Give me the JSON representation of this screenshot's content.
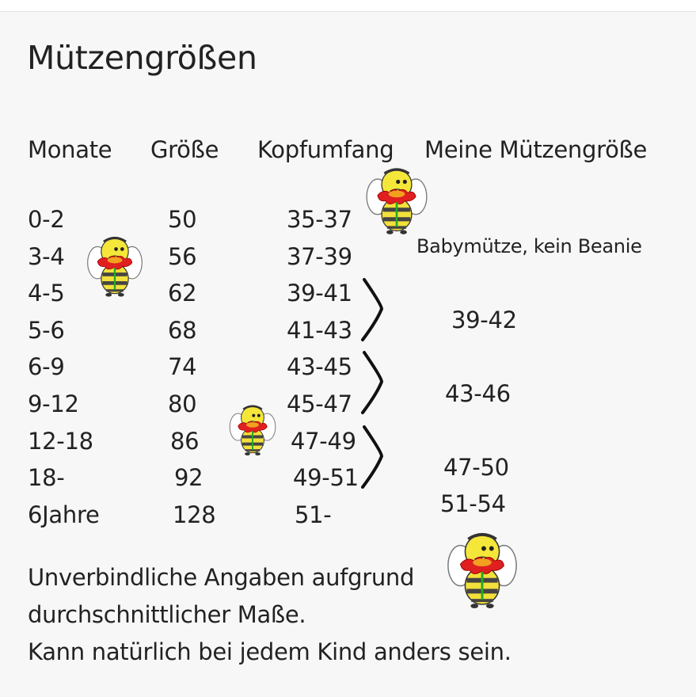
{
  "title": "Mützengrößen",
  "headers": [
    "Monate",
    "Größe",
    "Kopfumfang",
    "Meine Mützengröße"
  ],
  "rows": [
    {
      "monate": "0-2",
      "groesse": "50",
      "kopf": "35-37"
    },
    {
      "monate": "3-4",
      "groesse": "56",
      "kopf": "37-39"
    },
    {
      "monate": "4-5",
      "groesse": "62",
      "kopf": "39-41"
    },
    {
      "monate": "5-6",
      "groesse": "68",
      "kopf": "41-43"
    },
    {
      "monate": "6-9",
      "groesse": "74",
      "kopf": "43-45"
    },
    {
      "monate": "9-12",
      "groesse": "80",
      "kopf": "45-47"
    },
    {
      "monate": "12-18",
      "groesse": "86",
      "kopf": "47-49"
    },
    {
      "monate": "18-",
      "groesse": "92",
      "kopf": "49-51"
    },
    {
      "monate": "6Jahre",
      "groesse": "128",
      "kopf": "51-"
    }
  ],
  "meine": {
    "baby": "Babymütze, kein Beanie",
    "g1": "39-42",
    "g2": "43-46",
    "g3": "47-50",
    "g4": "51-54"
  },
  "footer": [
    "Unverbindliche Angaben aufgrund",
    "durchschnittlicher Maße.",
    "Kann natürlich bei jedem Kind anders sein."
  ]
}
